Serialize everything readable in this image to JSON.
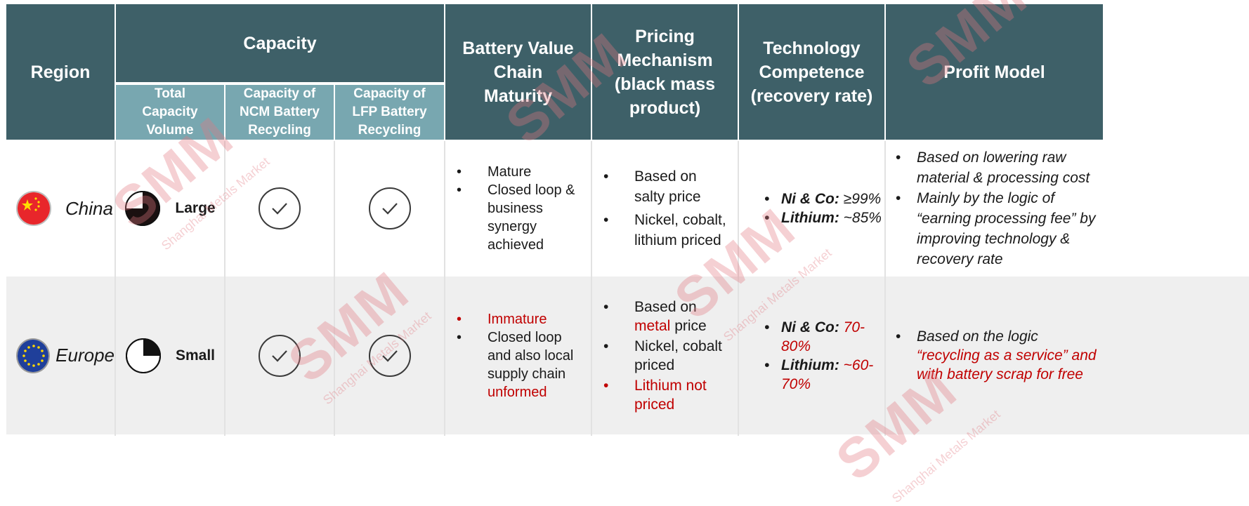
{
  "header": {
    "region": "Region",
    "capacity": "Capacity",
    "total_capacity": "Total Capacity Volume",
    "ncm": "Capacity of NCM Battery Recycling",
    "lfp": "Capacity of LFP Battery Recycling",
    "value_chain": "Battery Value Chain Maturity",
    "pricing": "Pricing Mechanism (black mass product)",
    "technology": "Technology Competence (recovery rate)",
    "profit": "Profit Model"
  },
  "rows": [
    {
      "region": "China",
      "capacity_label": "Large",
      "capacity_fill_fraction": 0.75,
      "value_chain": [
        "Mature",
        "Closed loop & business synergy achieved"
      ],
      "pricing": [
        "Based on salty price",
        "Nickel, cobalt, lithium priced"
      ],
      "tech": [
        {
          "label": "Ni & Co:",
          "value": " ≥99%"
        },
        {
          "label": "Lithium:",
          "value": " ~85%"
        }
      ],
      "profit": [
        "Based on lowering raw material & processing cost",
        "Mainly by the logic of “earning processing fee” by improving technology & recovery rate"
      ]
    },
    {
      "region": "Europe",
      "capacity_label": "Small",
      "capacity_fill_fraction": 0.25,
      "value_chain": {
        "item1": "Immature",
        "item2_pre": "Closed loop and also local supply chain ",
        "item2_red": "unformed"
      },
      "pricing": {
        "item1_pre": "Based on ",
        "item1_red": "metal",
        "item1_post": " price",
        "item2": "Nickel, cobalt priced",
        "item3": "Lithium not priced"
      },
      "tech": [
        {
          "label": "Ni & Co:",
          "value": " 70-80%"
        },
        {
          "label": "Lithium:",
          "value": " ~60-70%"
        }
      ],
      "profit": {
        "pre": "Based on the logic ",
        "red": "“recycling as a service” and with battery scrap for free"
      }
    }
  ],
  "bullet": "•",
  "watermark": "SMM",
  "watermark_sub": "Shanghai Metals Market",
  "colors": {
    "header": "#3e6068",
    "subheader": "#78a7b0",
    "row_alt": "#efefef",
    "accent_red": "#c00000"
  }
}
